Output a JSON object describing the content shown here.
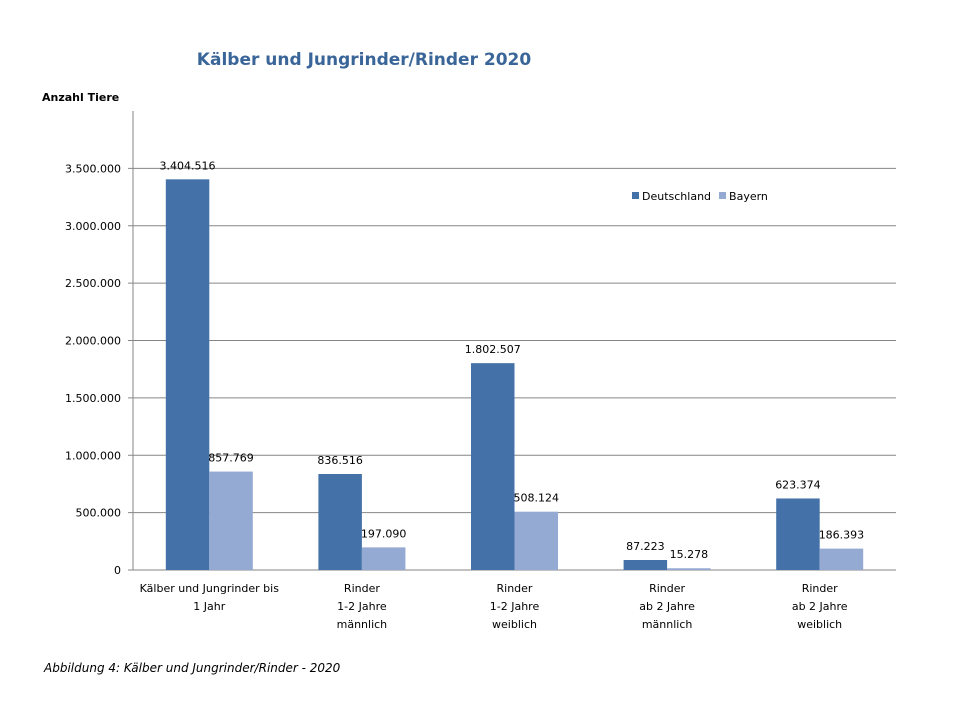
{
  "chart_data": {
    "type": "bar",
    "title": "Kälber und Jungrinder/Rinder  2020",
    "ylabel": "Anzahl Tiere",
    "xlabel": "",
    "ylim": [
      0,
      4000000
    ],
    "yticks": [
      0,
      500000,
      1000000,
      1500000,
      2000000,
      2500000,
      3000000,
      3500000
    ],
    "ytick_labels": [
      "0",
      "500.000",
      "1.000.000",
      "1.500.000",
      "2.000.000",
      "2.500.000",
      "3.000.000",
      "3.500.000"
    ],
    "grid": true,
    "legend_position": "top-right",
    "categories": [
      [
        "Kälber und Jungrinder bis",
        "1 Jahr"
      ],
      [
        "Rinder",
        "1-2 Jahre",
        "männlich"
      ],
      [
        "Rinder",
        "1-2 Jahre",
        "weiblich"
      ],
      [
        "Rinder",
        "ab 2 Jahre",
        "männlich"
      ],
      [
        "Rinder",
        "ab 2 Jahre",
        "weiblich"
      ]
    ],
    "series": [
      {
        "name": "Deutschland",
        "color": "#4472a8",
        "values": [
          3404516,
          836516,
          1802507,
          87223,
          623374
        ],
        "labels": [
          "3.404.516",
          "836.516",
          "1.802.507",
          "87.223",
          "623.374"
        ]
      },
      {
        "name": "Bayern",
        "color": "#95aad2",
        "values": [
          857769,
          197090,
          508124,
          15278,
          186393
        ],
        "labels": [
          "857.769",
          "197.090",
          "508.124",
          "15.278",
          "186.393"
        ]
      }
    ]
  },
  "caption": "Abbildung 4: Kälber und Jungrinder/Rinder - 2020"
}
